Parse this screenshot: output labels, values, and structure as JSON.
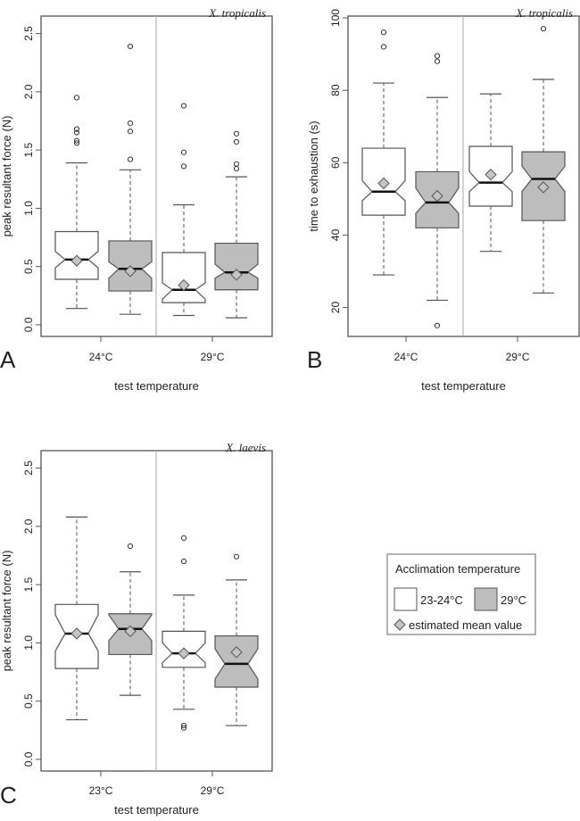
{
  "colors": {
    "box_fill_low": "#ffffff",
    "box_fill_high": "#bdbdbd",
    "stroke": "#555555",
    "frame": "#555555",
    "separator": "#aaaaaa",
    "mean_marker": "#c4c4c4",
    "median": "#111111"
  },
  "chart_data": [
    {
      "panel": "A",
      "type": "boxplot",
      "title": "X. tropicalis",
      "xlabel": "test temperature",
      "ylabel": "peak resultant force (N)",
      "ylim": [
        -0.1,
        2.65
      ],
      "yticks": [
        0.0,
        0.5,
        1.0,
        1.5,
        2.0,
        2.5
      ],
      "ytick_labels": [
        "0.0",
        "0.5",
        "1.0",
        "1.5",
        "2.0",
        "2.5"
      ],
      "categories": [
        "24°C",
        "29°C"
      ],
      "boxes": [
        {
          "test": "24°C",
          "acclimation": "23-24°C",
          "q1": 0.39,
          "median": 0.56,
          "q3": 0.8,
          "notch": [
            0.49,
            0.63
          ],
          "whiskers": [
            0.14,
            1.39
          ],
          "mean": 0.55,
          "outliers": [
            1.56,
            1.58,
            1.65,
            1.68,
            1.95
          ]
        },
        {
          "test": "24°C",
          "acclimation": "29°C",
          "q1": 0.29,
          "median": 0.48,
          "q3": 0.72,
          "notch": [
            0.4,
            0.54
          ],
          "whiskers": [
            0.09,
            1.33
          ],
          "mean": 0.46,
          "outliers": [
            1.42,
            1.66,
            1.73,
            2.39
          ]
        },
        {
          "test": "29°C",
          "acclimation": "23-24°C",
          "q1": 0.19,
          "median": 0.3,
          "q3": 0.62,
          "notch": [
            0.22,
            0.36
          ],
          "whiskers": [
            0.08,
            1.03
          ],
          "mean": 0.34,
          "outliers": [
            1.36,
            1.48,
            1.88
          ]
        },
        {
          "test": "29°C",
          "acclimation": "29°C",
          "q1": 0.3,
          "median": 0.45,
          "q3": 0.7,
          "notch": [
            0.4,
            0.52
          ],
          "whiskers": [
            0.06,
            1.27
          ],
          "mean": 0.43,
          "outliers": [
            1.34,
            1.38,
            1.57,
            1.64
          ]
        }
      ]
    },
    {
      "panel": "B",
      "type": "boxplot",
      "title": "X. tropicalis",
      "xlabel": "test temperature",
      "ylabel": "time to exhaustion (s)",
      "ylim": [
        12,
        100.5
      ],
      "yticks": [
        20,
        40,
        60,
        80,
        100
      ],
      "ytick_labels": [
        "20",
        "40",
        "60",
        "80",
        "100"
      ],
      "categories": [
        "24°C",
        "29°C"
      ],
      "boxes": [
        {
          "test": "24°C",
          "acclimation": "23-24°C",
          "q1": 45.5,
          "median": 52,
          "q3": 64,
          "notch": [
            49.5,
            55
          ],
          "whiskers": [
            29,
            82
          ],
          "mean": 54.3,
          "outliers": [
            92,
            96
          ]
        },
        {
          "test": "24°C",
          "acclimation": "29°C",
          "q1": 42,
          "median": 49,
          "q3": 57.5,
          "notch": [
            46,
            53
          ],
          "whiskers": [
            22,
            78
          ],
          "mean": 50.8,
          "outliers": [
            15,
            88,
            89.5
          ]
        },
        {
          "test": "29°C",
          "acclimation": "23-24°C",
          "q1": 48,
          "median": 54.5,
          "q3": 64.5,
          "notch": [
            52,
            57.5
          ],
          "whiskers": [
            35.5,
            79
          ],
          "mean": 56.7,
          "outliers": []
        },
        {
          "test": "29°C",
          "acclimation": "29°C",
          "q1": 44,
          "median": 55.5,
          "q3": 63,
          "notch": [
            52,
            59
          ],
          "whiskers": [
            24,
            83
          ],
          "mean": 53.2,
          "outliers": [
            97
          ]
        }
      ]
    },
    {
      "panel": "C",
      "type": "boxplot",
      "title": "X. laevis",
      "xlabel": "test temperature",
      "ylabel": "peak resultant force (N)",
      "ylim": [
        -0.1,
        2.65
      ],
      "yticks": [
        0.0,
        0.5,
        1.0,
        1.5,
        2.0,
        2.5
      ],
      "ytick_labels": [
        "0.0",
        "0.5",
        "1.0",
        "1.5",
        "2.0",
        "2.5"
      ],
      "categories": [
        "23°C",
        "29°C"
      ],
      "boxes": [
        {
          "test": "23°C",
          "acclimation": "23-24°C",
          "q1": 0.78,
          "median": 1.08,
          "q3": 1.33,
          "notch": [
            0.93,
            1.24
          ],
          "whiskers": [
            0.34,
            2.08
          ],
          "mean": 1.08,
          "outliers": []
        },
        {
          "test": "23°C",
          "acclimation": "29°C",
          "q1": 0.9,
          "median": 1.12,
          "q3": 1.25,
          "notch": [
            1.02,
            1.24
          ],
          "whiskers": [
            0.55,
            1.61
          ],
          "mean": 1.1,
          "outliers": [
            1.83
          ]
        },
        {
          "test": "29°C",
          "acclimation": "23-24°C",
          "q1": 0.79,
          "median": 0.91,
          "q3": 1.1,
          "notch": [
            0.83,
            1.0
          ],
          "whiskers": [
            0.43,
            1.41
          ],
          "mean": 0.91,
          "outliers": [
            0.27,
            0.29,
            1.7,
            1.9
          ]
        },
        {
          "test": "29°C",
          "acclimation": "29°C",
          "q1": 0.62,
          "median": 0.82,
          "q3": 1.06,
          "notch": [
            0.69,
            0.95
          ],
          "whiskers": [
            0.29,
            1.54
          ],
          "mean": 0.92,
          "outliers": [
            1.74
          ]
        }
      ]
    }
  ],
  "legend": {
    "title": "Acclimation temperature",
    "items": [
      {
        "label": "23-24°C",
        "fill": "#ffffff"
      },
      {
        "label": "29°C",
        "fill": "#bdbdbd"
      }
    ],
    "mean_label": "estimated mean value",
    "placement": "right of panel C"
  }
}
